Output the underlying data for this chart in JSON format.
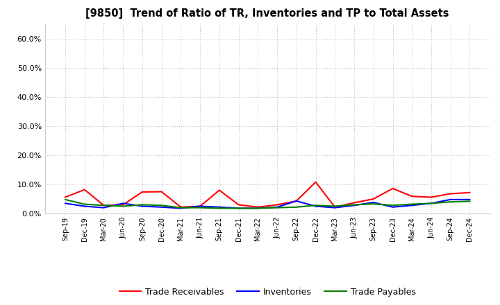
{
  "title": "[9850]  Trend of Ratio of TR, Inventories and TP to Total Assets",
  "x_labels": [
    "Sep-19",
    "Dec-19",
    "Mar-20",
    "Jun-20",
    "Sep-20",
    "Dec-20",
    "Mar-21",
    "Jun-21",
    "Sep-21",
    "Dec-21",
    "Mar-22",
    "Jun-22",
    "Sep-22",
    "Dec-22",
    "Mar-23",
    "Jun-23",
    "Sep-23",
    "Dec-23",
    "Mar-24",
    "Jun-24",
    "Sep-24",
    "Dec-24"
  ],
  "trade_receivables": [
    0.056,
    0.082,
    0.028,
    0.03,
    0.074,
    0.075,
    0.022,
    0.025,
    0.08,
    0.03,
    0.022,
    0.03,
    0.043,
    0.108,
    0.022,
    0.037,
    0.05,
    0.086,
    0.059,
    0.056,
    0.068,
    0.072
  ],
  "inventories": [
    0.035,
    0.025,
    0.02,
    0.035,
    0.025,
    0.022,
    0.018,
    0.025,
    0.022,
    0.018,
    0.018,
    0.022,
    0.043,
    0.025,
    0.02,
    0.028,
    0.038,
    0.022,
    0.028,
    0.035,
    0.048,
    0.048
  ],
  "trade_payables": [
    0.048,
    0.032,
    0.028,
    0.025,
    0.03,
    0.028,
    0.02,
    0.02,
    0.018,
    0.018,
    0.018,
    0.02,
    0.022,
    0.028,
    0.025,
    0.03,
    0.033,
    0.028,
    0.032,
    0.035,
    0.04,
    0.042
  ],
  "ylim": [
    0.0,
    0.65
  ],
  "yticks": [
    0.0,
    0.1,
    0.2,
    0.3,
    0.4,
    0.5,
    0.6
  ],
  "ytick_labels": [
    "0.0%",
    "10.0%",
    "20.0%",
    "30.0%",
    "40.0%",
    "50.0%",
    "60.0%"
  ],
  "color_tr": "#ff0000",
  "color_inv": "#0000ff",
  "color_tp": "#008000",
  "legend_labels": [
    "Trade Receivables",
    "Inventories",
    "Trade Payables"
  ],
  "background_color": "#ffffff",
  "grid_color": "#bbbbbb"
}
